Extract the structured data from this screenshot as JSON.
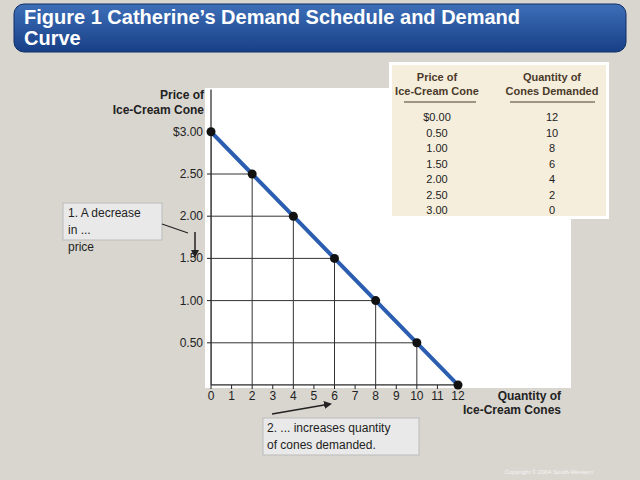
{
  "chart_data": {
    "type": "line",
    "title": "Figure 1 Catherine’s Demand Schedule and Demand Curve",
    "ylabel": [
      "Price of",
      "Ice-Cream Cone"
    ],
    "xlabel": [
      "Quantity of",
      "Ice-Cream Cones"
    ],
    "x": [
      0,
      2,
      4,
      6,
      8,
      10,
      12
    ],
    "values": [
      3,
      2.5,
      2,
      1.5,
      1,
      0.5,
      0
    ],
    "color": "#2b5db0",
    "marker": "circle",
    "grid": true,
    "xlim": [
      0,
      12
    ],
    "xticks": [
      0,
      1,
      2,
      3,
      4,
      5,
      6,
      7,
      8,
      9,
      10,
      11,
      12
    ],
    "ylim": [
      0,
      3.5
    ],
    "yticks": [
      {
        "value": 0.5,
        "label": "0.50"
      },
      {
        "value": 1,
        "label": "1.00"
      },
      {
        "value": 1.5,
        "label": "1.50"
      },
      {
        "value": 2,
        "label": "2.00"
      },
      {
        "value": 2.5,
        "label": "2.50"
      },
      {
        "value": 3,
        "label": "$3.00"
      }
    ],
    "annotations": [
      [
        "1. A decrease",
        "in ...",
        "price"
      ],
      [
        "2. ... increases quantity",
        "of cones demanded."
      ]
    ],
    "source": "Copyright © 2004 South-Western"
  },
  "table": {
    "headers": [
      [
        "Price of",
        "Ice-Cream Cone"
      ],
      [
        "Quantity of",
        "Cones Demanded"
      ]
    ],
    "rows": [
      [
        "$0.00",
        12
      ],
      [
        "0.50",
        10
      ],
      [
        "1.00",
        8
      ],
      [
        "1.50",
        6
      ],
      [
        "2.00",
        4
      ],
      [
        "2.50",
        2
      ],
      [
        "3.00",
        0
      ]
    ]
  }
}
